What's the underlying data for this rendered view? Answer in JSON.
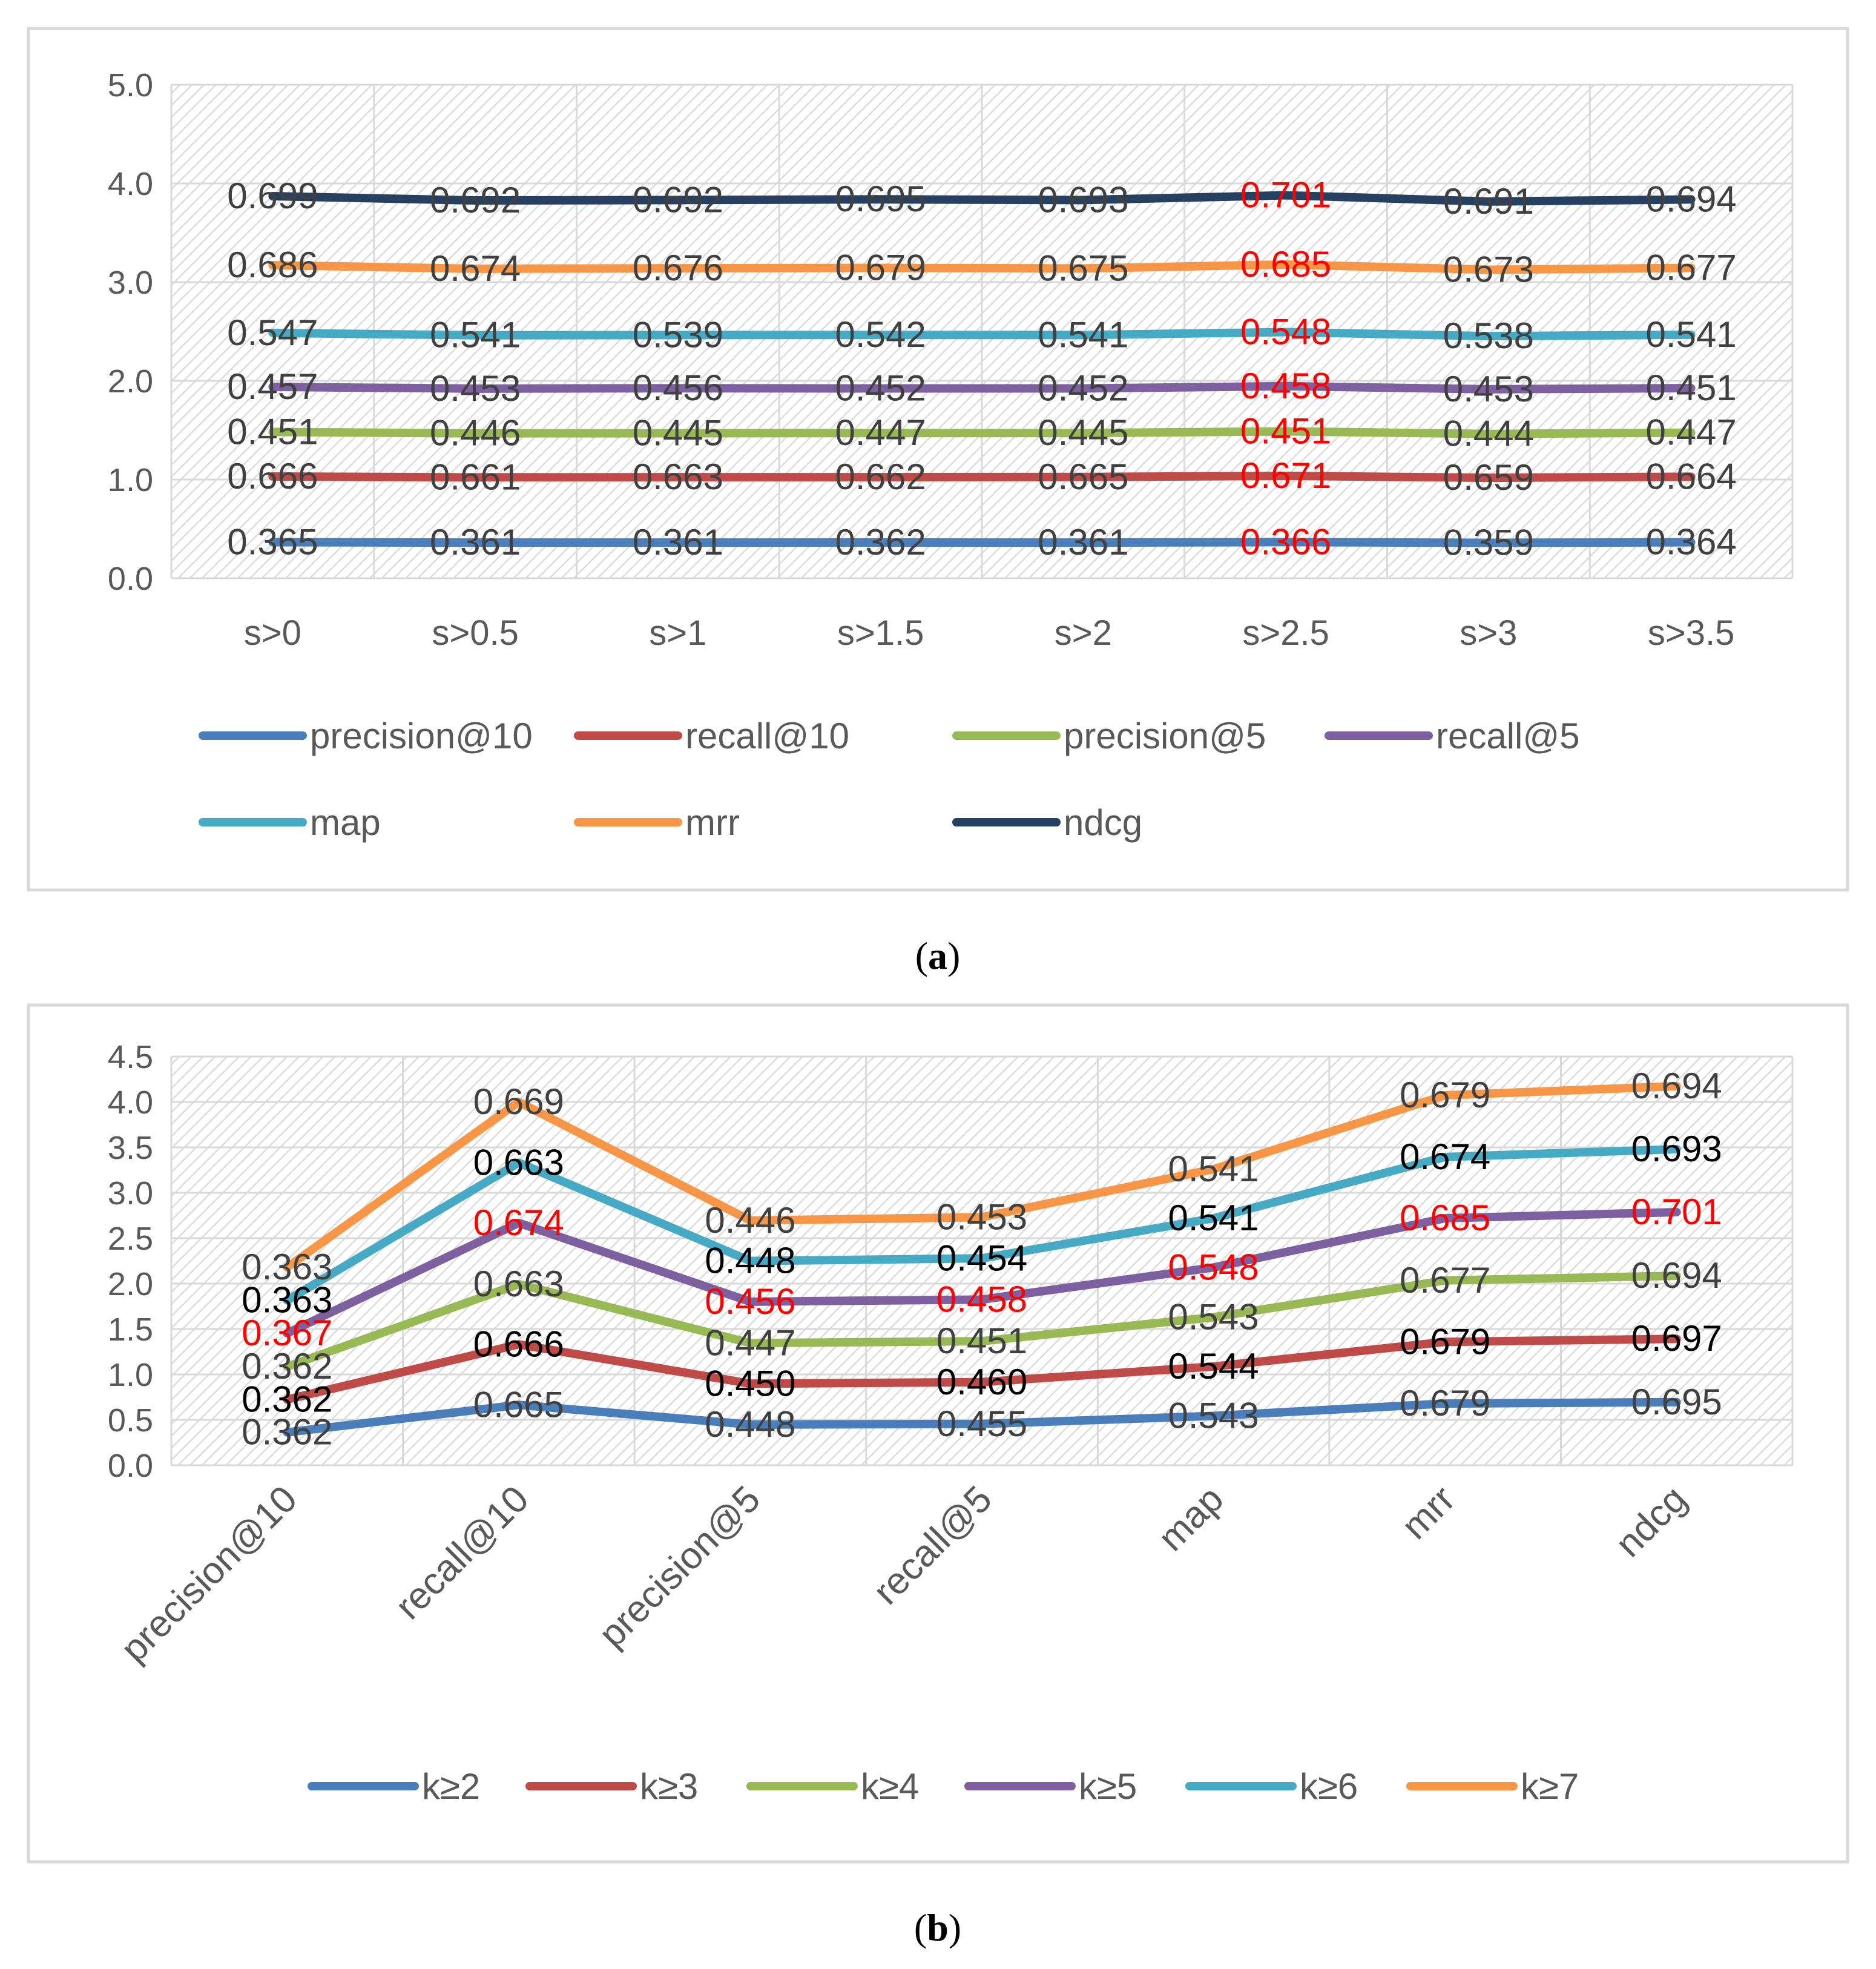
{
  "captions": [
    {
      "open": "(",
      "letter": "a",
      "close": ")"
    },
    {
      "open": "(",
      "letter": "b",
      "close": ")"
    }
  ],
  "colors": {
    "precision@10": "#4a7ebb",
    "recall@10": "#be4b48",
    "precision@5": "#98b954",
    "recall@5": "#7d60a0",
    "map": "#46aac5",
    "mrr": "#f79646",
    "ndcg": "#254061",
    "highlight": "#ff0000"
  },
  "chart_data": [
    {
      "type": "line",
      "title": "",
      "caption": "(a)",
      "categories": [
        "s>0",
        "s>0.5",
        "s>1",
        "s>1.5",
        "s>2",
        "s>2.5",
        "s>3",
        "s>3.5"
      ],
      "ylim": [
        0,
        5
      ],
      "yticks": [
        "0.0",
        "1.0",
        "2.0",
        "3.0",
        "4.0",
        "5.0"
      ],
      "stacked": true,
      "grid": true,
      "legend_position": "bottom",
      "highlight_category_index": 5,
      "series": [
        {
          "name": "precision@10",
          "color": "#4a7ebb",
          "values": [
            0.365,
            0.361,
            0.361,
            0.362,
            0.361,
            0.366,
            0.359,
            0.364
          ],
          "labels": [
            "0.365",
            "0.361",
            "0.361",
            "0.362",
            "0.361",
            "0.366",
            "0.359",
            "0.364"
          ]
        },
        {
          "name": "recall@10",
          "color": "#be4b48",
          "values": [
            0.666,
            0.661,
            0.663,
            0.662,
            0.665,
            0.671,
            0.659,
            0.664
          ],
          "labels": [
            "0.666",
            "0.661",
            "0.663",
            "0.662",
            "0.665",
            "0.671",
            "0.659",
            "0.664"
          ]
        },
        {
          "name": "precision@5",
          "color": "#98b954",
          "values": [
            0.451,
            0.446,
            0.445,
            0.447,
            0.445,
            0.451,
            0.444,
            0.447
          ],
          "labels": [
            "0.451",
            "0.446",
            "0.445",
            "0.447",
            "0.445",
            "0.451",
            "0.444",
            "0.447"
          ]
        },
        {
          "name": "recall@5",
          "color": "#7d60a0",
          "values": [
            0.457,
            0.453,
            0.456,
            0.452,
            0.452,
            0.458,
            0.453,
            0.451
          ],
          "labels": [
            "0.457",
            "0.453",
            "0.456",
            "0.452",
            "0.452",
            "0.458",
            "0.453",
            "0.451"
          ]
        },
        {
          "name": "map",
          "color": "#46aac5",
          "values": [
            0.547,
            0.541,
            0.539,
            0.542,
            0.541,
            0.548,
            0.538,
            0.541
          ],
          "labels": [
            "0.547",
            "0.541",
            "0.539",
            "0.542",
            "0.541",
            "0.548",
            "0.538",
            "0.541"
          ]
        },
        {
          "name": "mrr",
          "color": "#f79646",
          "values": [
            0.686,
            0.674,
            0.676,
            0.679,
            0.675,
            0.685,
            0.673,
            0.677
          ],
          "labels": [
            "0.686",
            "0.674",
            "0.676",
            "0.679",
            "0.675",
            "0.685",
            "0.673",
            "0.677"
          ]
        },
        {
          "name": "ndcg",
          "color": "#254061",
          "values": [
            0.699,
            0.692,
            0.692,
            0.695,
            0.693,
            0.701,
            0.691,
            0.694
          ],
          "labels": [
            "0.699",
            "0.692",
            "0.692",
            "0.695",
            "0.693",
            "0.701",
            "0.691",
            "0.694"
          ]
        }
      ]
    },
    {
      "type": "line",
      "title": "",
      "caption": "(b)",
      "categories": [
        "precision@10",
        "recall@10",
        "precision@5",
        "recall@5",
        "map",
        "mrr",
        "ndcg"
      ],
      "ylim": [
        0,
        4.5
      ],
      "yticks": [
        "0.0",
        "0.5",
        "1.0",
        "1.5",
        "2.0",
        "2.5",
        "3.0",
        "3.5",
        "4.0",
        "4.5"
      ],
      "stacked": true,
      "grid": true,
      "legend_position": "bottom",
      "series": [
        {
          "name": "k≥2",
          "color": "#4a7ebb",
          "values": [
            0.362,
            0.665,
            0.448,
            0.455,
            0.543,
            0.679,
            0.695
          ],
          "labels": [
            "0.362",
            "0.665",
            "0.448",
            "0.455",
            "0.543",
            "0.679",
            "0.695"
          ]
        },
        {
          "name": "k≥3",
          "color": "#be4b48",
          "values": [
            0.362,
            0.666,
            0.45,
            0.46,
            0.544,
            0.679,
            0.697
          ],
          "labels": [
            "0.362",
            "0.666",
            "0.450",
            "0.460",
            "0.544",
            "0.679",
            "0.697"
          ]
        },
        {
          "name": "k≥4",
          "color": "#98b954",
          "values": [
            0.362,
            0.663,
            0.447,
            0.451,
            0.543,
            0.677,
            0.694
          ],
          "labels": [
            "0.362",
            "0.663",
            "0.447",
            "0.451",
            "0.543",
            "0.677",
            "0.694"
          ]
        },
        {
          "name": "k≥5",
          "color": "#7d60a0",
          "values": [
            0.367,
            0.674,
            0.456,
            0.458,
            0.548,
            0.685,
            0.701
          ],
          "labels": [
            "0.367",
            "0.674",
            "0.456",
            "0.458",
            "0.548",
            "0.685",
            "0.701"
          ]
        },
        {
          "name": "k≥6",
          "color": "#46aac5",
          "values": [
            0.363,
            0.663,
            0.448,
            0.454,
            0.541,
            0.674,
            0.693
          ],
          "labels": [
            "0.363",
            "0.663",
            "0.448",
            "0.454",
            "0.541",
            "0.674",
            "0.693"
          ]
        },
        {
          "name": "k≥7",
          "color": "#f79646",
          "values": [
            0.363,
            0.669,
            0.446,
            0.453,
            0.541,
            0.679,
            0.694
          ],
          "labels": [
            "0.363",
            "0.669",
            "0.446",
            "0.453",
            "0.541",
            "0.679",
            "0.694"
          ]
        }
      ],
      "highlight_series": "k≥5",
      "dark_label_series": [
        "k≥3",
        "k≥6"
      ]
    }
  ]
}
